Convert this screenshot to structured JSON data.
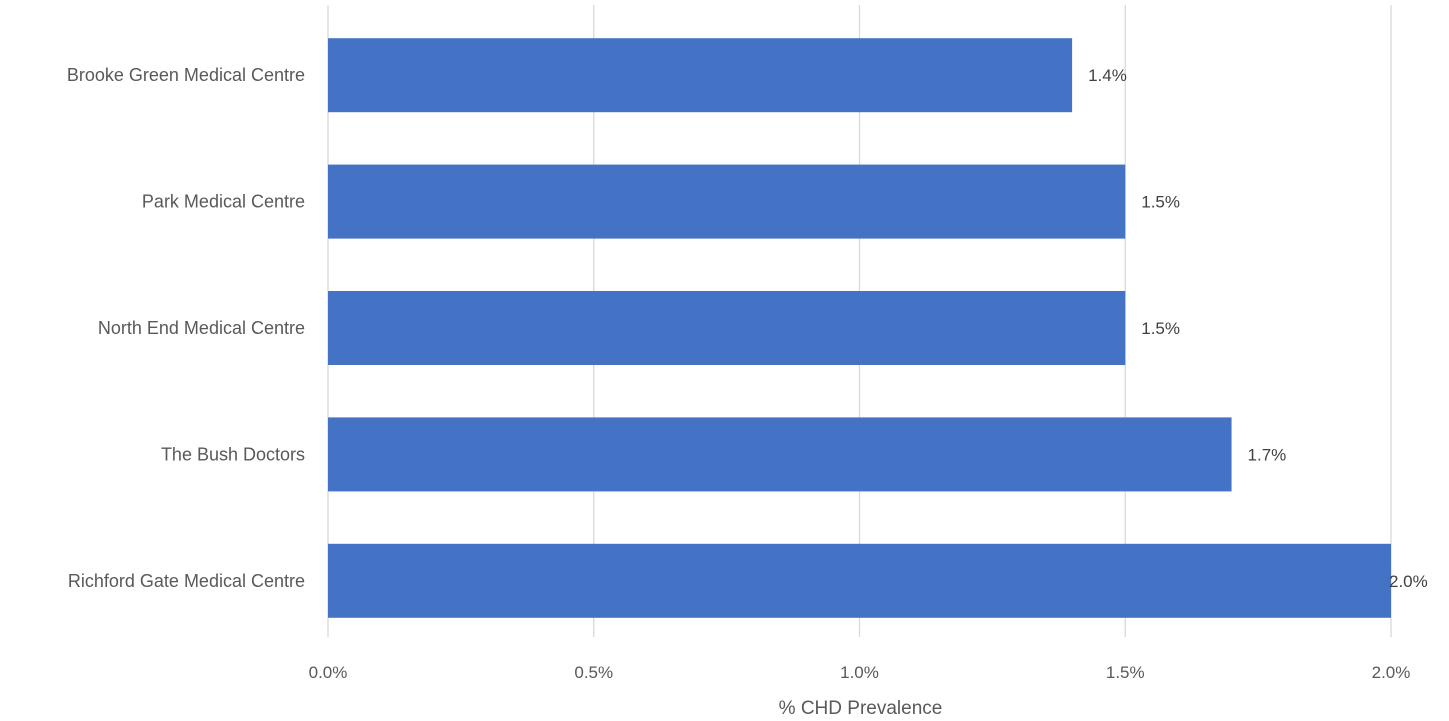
{
  "chart_data": {
    "type": "bar",
    "orientation": "horizontal",
    "categories": [
      "Brooke Green Medical Centre",
      "Park Medical Centre",
      "North End Medical Centre",
      "The Bush Doctors",
      "Richford Gate Medical Centre"
    ],
    "values": [
      1.4,
      1.5,
      1.5,
      1.7,
      2.0
    ],
    "value_labels": [
      "1.4%",
      "1.5%",
      "1.5%",
      "1.7%",
      "2.0%"
    ],
    "xticks": [
      "0.0%",
      "0.5%",
      "1.0%",
      "1.5%",
      "2.0%"
    ],
    "xlim": [
      0,
      2.0
    ],
    "xlabel": "% CHD Prevalence",
    "ylabel": "",
    "title": "",
    "grid": "vertical",
    "legend": "none",
    "bar_color": "#4472C4"
  }
}
